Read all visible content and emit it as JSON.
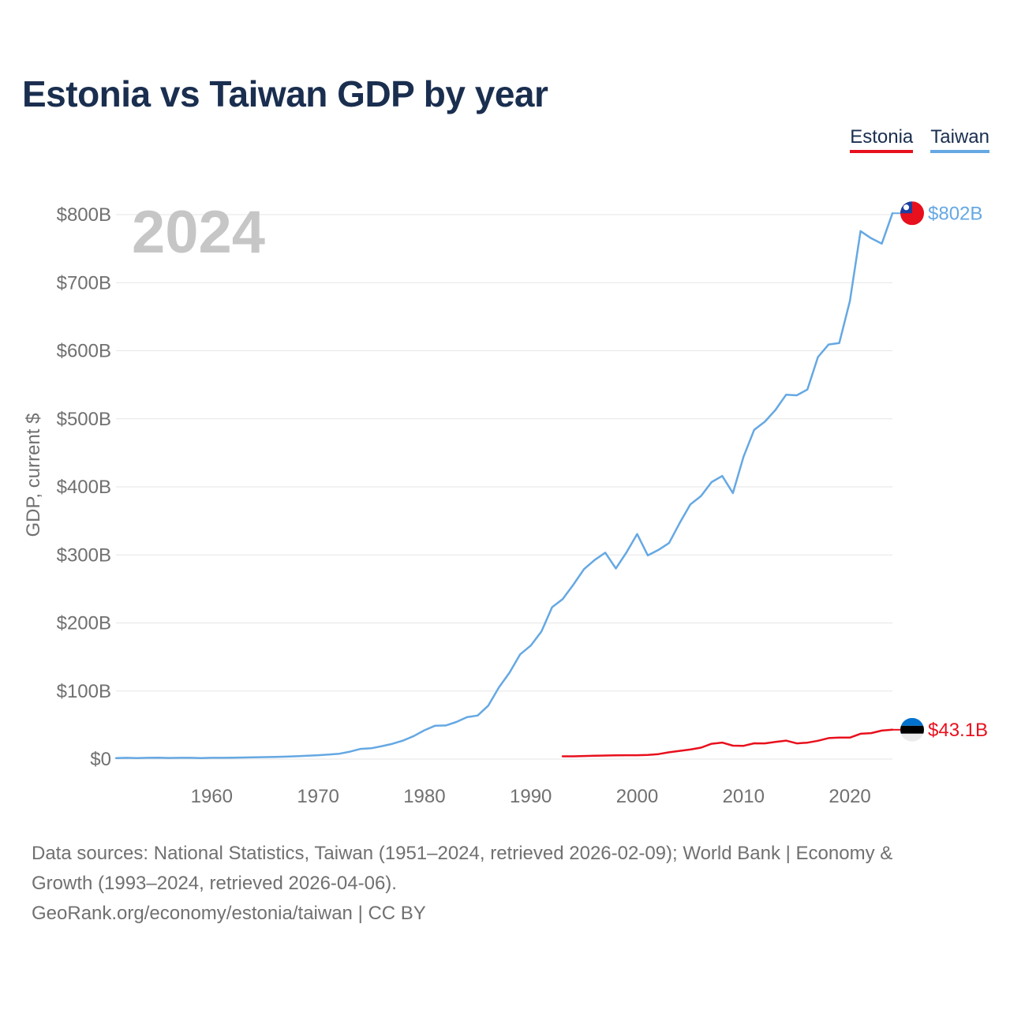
{
  "title": "Estonia vs Taiwan GDP by year",
  "legend": [
    {
      "name": "Estonia",
      "color": "#e8101d"
    },
    {
      "name": "Taiwan",
      "color": "#65a8e3"
    }
  ],
  "year_watermark": "2024",
  "end_labels": {
    "taiwan": "$802B",
    "estonia": "$43.1B"
  },
  "footer": {
    "line1": "Data sources: National Statistics, Taiwan (1951–2024, retrieved 2026-02-09); World Bank | Economy &",
    "line2": "Growth (1993–2024, retrieved 2026-04-06).",
    "line3": "GeoRank.org/economy/estonia/taiwan | CC BY"
  },
  "chart_data": {
    "type": "line",
    "title": "Estonia vs Taiwan GDP by year",
    "xlabel": "",
    "ylabel": "GDP, current $",
    "xlim": [
      1951,
      2024
    ],
    "ylim": [
      0,
      800
    ],
    "y_unit": "billions USD",
    "x_ticks": [
      1960,
      1970,
      1980,
      1990,
      2000,
      2010,
      2020
    ],
    "y_ticks": [
      0,
      100,
      200,
      300,
      400,
      500,
      600,
      700,
      800
    ],
    "y_tick_labels": [
      "$0",
      "$100B",
      "$200B",
      "$300B",
      "$400B",
      "$500B",
      "$600B",
      "$700B",
      "$800B"
    ],
    "x_tick_labels": [
      "1960",
      "1970",
      "1980",
      "1990",
      "2000",
      "2010",
      "2020"
    ],
    "series": [
      {
        "name": "Taiwan",
        "color": "#65a8e3",
        "x": [
          1951,
          1952,
          1953,
          1954,
          1955,
          1956,
          1957,
          1958,
          1959,
          1960,
          1961,
          1962,
          1963,
          1964,
          1965,
          1966,
          1967,
          1968,
          1969,
          1970,
          1971,
          1972,
          1973,
          1974,
          1975,
          1976,
          1977,
          1978,
          1979,
          1980,
          1981,
          1982,
          1983,
          1984,
          1985,
          1986,
          1987,
          1988,
          1989,
          1990,
          1991,
          1992,
          1993,
          1994,
          1995,
          1996,
          1997,
          1998,
          1999,
          2000,
          2001,
          2002,
          2003,
          2004,
          2005,
          2006,
          2007,
          2008,
          2009,
          2010,
          2011,
          2012,
          2013,
          2014,
          2015,
          2016,
          2017,
          2018,
          2019,
          2020,
          2021,
          2022,
          2023,
          2024
        ],
        "values": [
          1.5,
          1.8,
          1.5,
          1.8,
          2.0,
          1.6,
          1.8,
          1.8,
          1.5,
          1.8,
          1.8,
          2.0,
          2.3,
          2.6,
          2.9,
          3.2,
          3.6,
          4.2,
          4.9,
          5.7,
          6.6,
          7.9,
          10.9,
          14.9,
          15.9,
          19.0,
          22.5,
          27.2,
          33.9,
          42.3,
          49.0,
          49.4,
          54.5,
          61.6,
          64.0,
          78.5,
          105.4,
          127.0,
          153.8,
          166.8,
          187.5,
          223.2,
          235.0,
          256.2,
          279.1,
          292.5,
          303.3,
          280.1,
          303.8,
          330.7,
          299.3,
          307.4,
          317.4,
          346.9,
          374.1,
          386.5,
          406.9,
          416.0,
          390.8,
          444.3,
          483.8,
          495.6,
          512.9,
          535.3,
          534.5,
          543.0,
          590.7,
          609.2,
          611.3,
          673.2,
          775.8,
          765.3,
          757.3,
          802.0
        ]
      },
      {
        "name": "Estonia",
        "color": "#e8101d",
        "x": [
          1993,
          1994,
          1995,
          1996,
          1997,
          1998,
          1999,
          2000,
          2001,
          2002,
          2003,
          2004,
          2005,
          2006,
          2007,
          2008,
          2009,
          2010,
          2011,
          2012,
          2013,
          2014,
          2015,
          2016,
          2017,
          2018,
          2019,
          2020,
          2021,
          2022,
          2023,
          2024
        ],
        "values": [
          4.0,
          4.1,
          4.5,
          4.9,
          5.2,
          5.6,
          5.7,
          5.7,
          6.2,
          7.3,
          10.0,
          12.0,
          14.0,
          16.8,
          22.5,
          24.2,
          19.7,
          19.5,
          23.2,
          23.1,
          25.2,
          27.1,
          23.1,
          24.1,
          26.9,
          30.8,
          31.6,
          31.5,
          37.2,
          38.1,
          41.8,
          43.1
        ]
      }
    ]
  }
}
